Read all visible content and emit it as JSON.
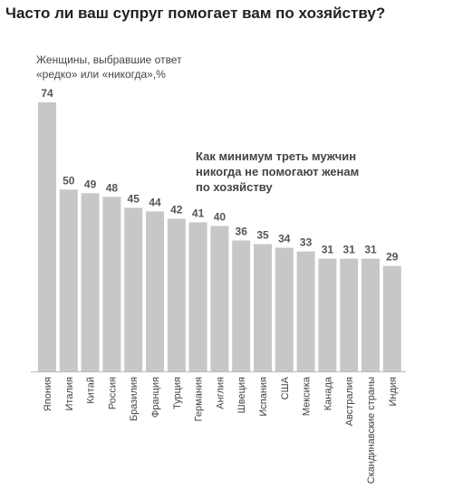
{
  "title": "Часто ли ваш супруг помогает вам по хозяйству?",
  "subtitle_line1": "Женщины, выбравшие ответ",
  "subtitle_line2": "«редко» или «никогда»,%",
  "annotation_line1": "Как минимум треть мужчин",
  "annotation_line2": "никогда не помогают женам",
  "annotation_line3": "по хозяйству",
  "colors": {
    "bar": "#c7c7c7",
    "axis": "#bbbbbb",
    "text": "#444444"
  },
  "chart_data": {
    "type": "bar",
    "title": "Часто ли ваш супруг помогает вам по хозяйству?",
    "xlabel": "",
    "ylabel": "",
    "ylim": [
      0,
      74
    ],
    "grid": false,
    "categories": [
      "Япония",
      "Италия",
      "Китай",
      "Россия",
      "Бразилия",
      "Франция",
      "Турция",
      "Германия",
      "Англия",
      "Швеция",
      "Испания",
      "США",
      "Мексика",
      "Канада",
      "Австралия",
      "Скандинавские страны",
      "Индия"
    ],
    "values": [
      74,
      50,
      49,
      48,
      45,
      44,
      42,
      41,
      40,
      36,
      35,
      34,
      33,
      31,
      31,
      31,
      29
    ]
  }
}
